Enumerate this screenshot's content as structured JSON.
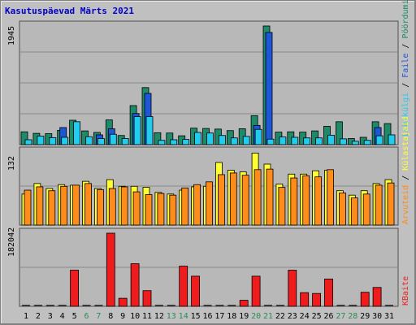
{
  "title": "Kasutuspäevad Märts 2021",
  "colors": {
    "background": "#c0c0c0",
    "panel": "#b8b8b8",
    "grid": "#8a8a8a",
    "pages": "#1e8a6a",
    "files": "#1e56d8",
    "hits": "#22ccee",
    "visits": "#ffff33",
    "sites": "#ff8c1a",
    "kbytes": "#ee1c1c",
    "weekday_label": "#000000",
    "weekend_label": "#2e8b57"
  },
  "chart_data": [
    {
      "type": "bar",
      "panel": "top",
      "ylabel_max": "1945",
      "ylim": [
        0,
        1945
      ],
      "legend": [
        {
          "label": "Pöördumisi",
          "color": "#1e8a6a"
        },
        {
          "label": "Faile",
          "color": "#1e56d8"
        },
        {
          "label": "Lehekülgi",
          "color": "#22ccee"
        }
      ],
      "categories": [
        "1",
        "2",
        "3",
        "4",
        "5",
        "6",
        "7",
        "8",
        "9",
        "10",
        "11",
        "12",
        "13",
        "14",
        "15",
        "16",
        "17",
        "18",
        "19",
        "20",
        "21",
        "22",
        "23",
        "24",
        "25",
        "26",
        "27",
        "28",
        "29",
        "30",
        "31"
      ],
      "series": [
        {
          "name": "Pöördumisi",
          "values": [
            210,
            185,
            180,
            235,
            400,
            225,
            200,
            405,
            150,
            640,
            935,
            195,
            190,
            145,
            270,
            265,
            255,
            230,
            260,
            475,
            1945,
            205,
            210,
            205,
            225,
            300,
            375,
            100,
            120,
            375,
            345
          ]
        },
        {
          "name": "Faile",
          "values": [
            0,
            0,
            0,
            280,
            0,
            0,
            160,
            260,
            0,
            510,
            840,
            0,
            0,
            0,
            0,
            0,
            0,
            0,
            0,
            315,
            1840,
            0,
            0,
            0,
            0,
            0,
            0,
            0,
            0,
            280,
            0
          ]
        },
        {
          "name": "Lehekülgi",
          "values": [
            80,
            140,
            115,
            120,
            375,
            130,
            100,
            170,
            100,
            460,
            460,
            70,
            80,
            85,
            200,
            190,
            150,
            110,
            135,
            250,
            90,
            125,
            120,
            110,
            110,
            155,
            95,
            55,
            70,
            145,
            160
          ]
        }
      ]
    },
    {
      "type": "bar",
      "panel": "middle",
      "ylabel_max": "132",
      "ylim": [
        0,
        132
      ],
      "legend": [
        {
          "label": "Külastajaid",
          "color": "#ffff33"
        },
        {
          "label": "Arvuteid",
          "color": "#ff8c1a"
        }
      ],
      "categories": [
        "1",
        "2",
        "3",
        "4",
        "5",
        "6",
        "7",
        "8",
        "9",
        "10",
        "11",
        "12",
        "13",
        "14",
        "15",
        "16",
        "17",
        "18",
        "19",
        "20",
        "21",
        "22",
        "23",
        "24",
        "25",
        "26",
        "27",
        "28",
        "29",
        "30",
        "31"
      ],
      "series": [
        {
          "name": "Külastajaid",
          "values": [
            56,
            75,
            66,
            73,
            72,
            79,
            66,
            82,
            70,
            70,
            68,
            59,
            56,
            63,
            69,
            70,
            113,
            99,
            96,
            130,
            110,
            74,
            92,
            92,
            98,
            99,
            62,
            54,
            62,
            75,
            82
          ]
        },
        {
          "name": "Arvuteid",
          "values": [
            63,
            69,
            62,
            70,
            72,
            75,
            64,
            66,
            69,
            60,
            55,
            57,
            54,
            67,
            73,
            78,
            91,
            94,
            90,
            100,
            101,
            68,
            85,
            89,
            87,
            100,
            58,
            49,
            56,
            72,
            76
          ]
        }
      ]
    },
    {
      "type": "bar",
      "panel": "bottom",
      "ylabel_max": "182042",
      "ylim": [
        0,
        182042
      ],
      "legend": [
        {
          "label": "KBaite",
          "color": "#ee1c1c"
        }
      ],
      "categories": [
        "1",
        "2",
        "3",
        "4",
        "5",
        "6",
        "7",
        "8",
        "9",
        "10",
        "11",
        "12",
        "13",
        "14",
        "15",
        "16",
        "17",
        "18",
        "19",
        "20",
        "21",
        "22",
        "23",
        "24",
        "25",
        "26",
        "27",
        "28",
        "29",
        "30",
        "31"
      ],
      "series": [
        {
          "name": "KBaite",
          "values": [
            0,
            0,
            0,
            0,
            90000,
            0,
            0,
            182042,
            20000,
            106000,
            39000,
            0,
            0,
            100000,
            75000,
            0,
            0,
            0,
            15000,
            75000,
            0,
            0,
            90000,
            34000,
            32000,
            68000,
            0,
            0,
            35000,
            47000,
            0
          ]
        }
      ]
    }
  ],
  "weekend_days": [
    6,
    7,
    13,
    14,
    20,
    21,
    27,
    28
  ]
}
